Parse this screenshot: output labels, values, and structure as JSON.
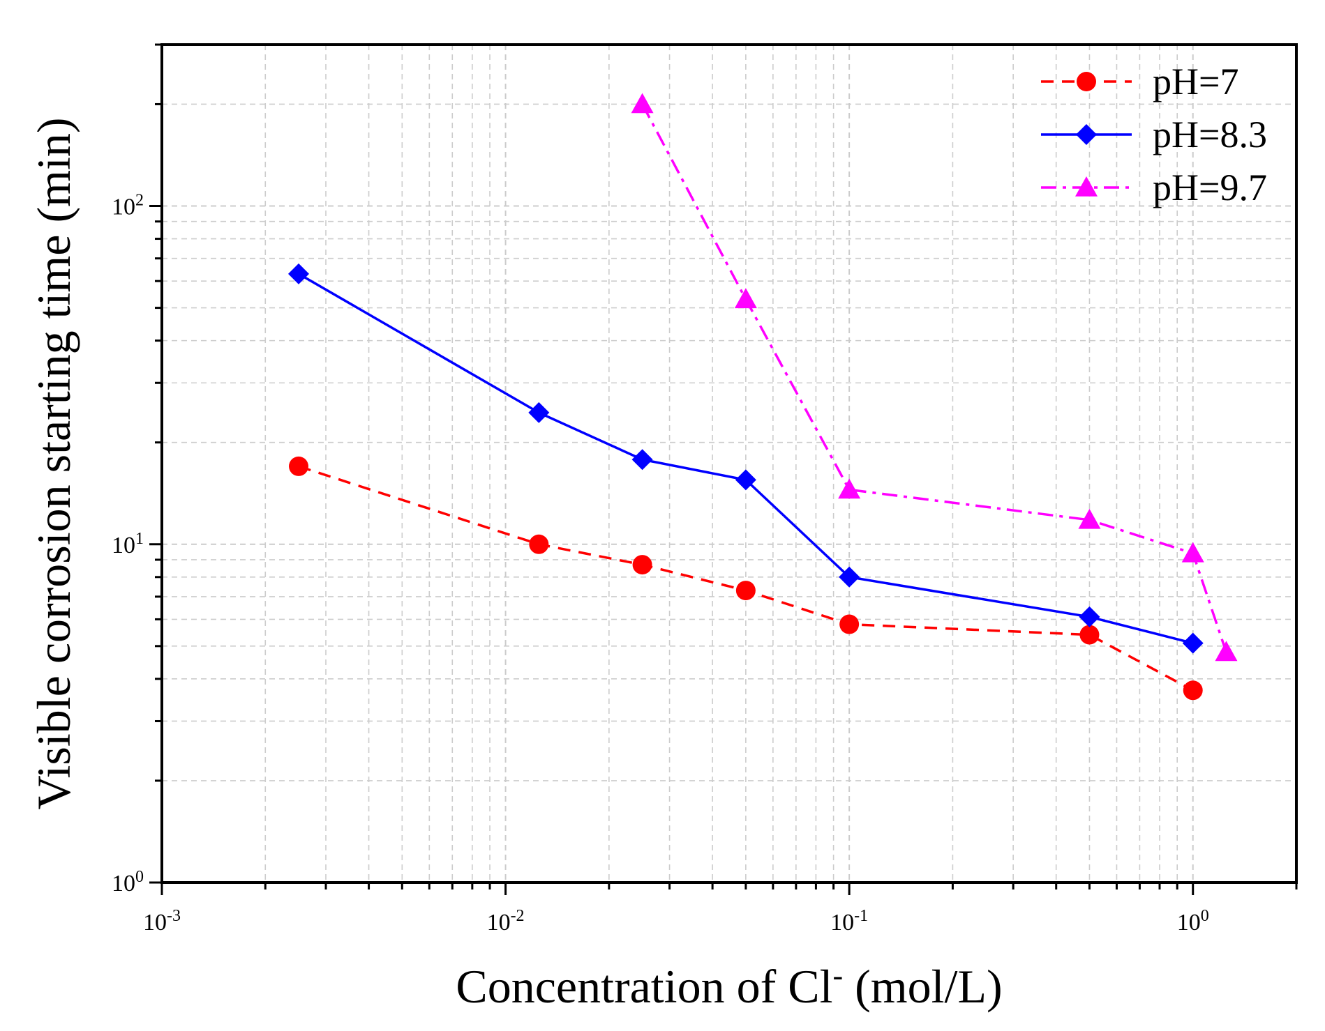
{
  "chart_data": {
    "type": "line",
    "title": "",
    "xlabel": "Concentration of Cl",
    "xlabel_superscript": "-",
    "xlabel_unit": " (mol/L)",
    "ylabel": "Visible corrosion starting time (min)",
    "xscale": "log",
    "yscale": "log",
    "xlim": [
      0.001,
      2.0
    ],
    "ylim": [
      1,
      300
    ],
    "grid": true,
    "legend_position": "top-right",
    "x_ticks": [
      {
        "base": "10",
        "exp": "-3",
        "value": 0.001
      },
      {
        "base": "10",
        "exp": "-2",
        "value": 0.01
      },
      {
        "base": "10",
        "exp": "-1",
        "value": 0.1
      },
      {
        "base": "10",
        "exp": "0",
        "value": 1
      }
    ],
    "y_ticks": [
      {
        "base": "10",
        "exp": "0",
        "value": 1
      },
      {
        "base": "10",
        "exp": "1",
        "value": 10
      },
      {
        "base": "10",
        "exp": "2",
        "value": 100
      }
    ],
    "series": [
      {
        "name": "pH=7",
        "color": "#ff0000",
        "line_style": "dashed",
        "marker": "circle",
        "x": [
          0.0025,
          0.0125,
          0.025,
          0.05,
          0.1,
          0.5,
          1.0
        ],
        "y": [
          17.0,
          10.0,
          8.7,
          7.3,
          5.8,
          5.4,
          3.7
        ]
      },
      {
        "name": "pH=8.3",
        "color": "#0000ff",
        "line_style": "solid",
        "marker": "diamond",
        "x": [
          0.0025,
          0.0125,
          0.025,
          0.05,
          0.1,
          0.5,
          1.0
        ],
        "y": [
          63.0,
          24.5,
          17.8,
          15.5,
          8.0,
          6.1,
          5.1
        ]
      },
      {
        "name": "pH=9.7",
        "color": "#ff00ff",
        "line_style": "dashdot",
        "marker": "triangle",
        "x": [
          0.025,
          0.05,
          0.1,
          0.5,
          1.0,
          1.25
        ],
        "y": [
          200.0,
          53.0,
          14.5,
          11.8,
          9.4,
          4.8
        ]
      }
    ]
  }
}
